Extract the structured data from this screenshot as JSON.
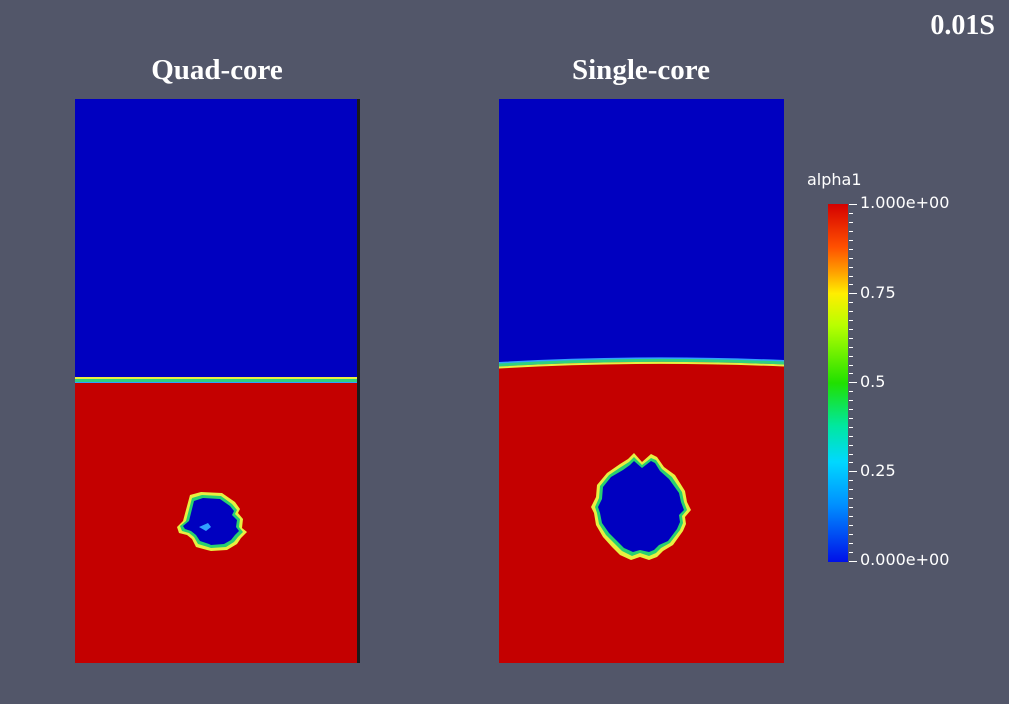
{
  "time_label": "0.01S",
  "panels": {
    "quad": {
      "title": "Quad-core"
    },
    "single": {
      "title": "Single-core"
    }
  },
  "legend": {
    "title": "alpha1",
    "ticks": [
      "1.000e+00",
      "0.75",
      "0.5",
      "0.25",
      "0.000e+00"
    ]
  },
  "colors": {
    "background": "#525669",
    "air_blue": "#0000c0",
    "water_red": "#c40000",
    "interface_green": "#2ee06a",
    "interface_yellow": "#e2f04a"
  }
}
